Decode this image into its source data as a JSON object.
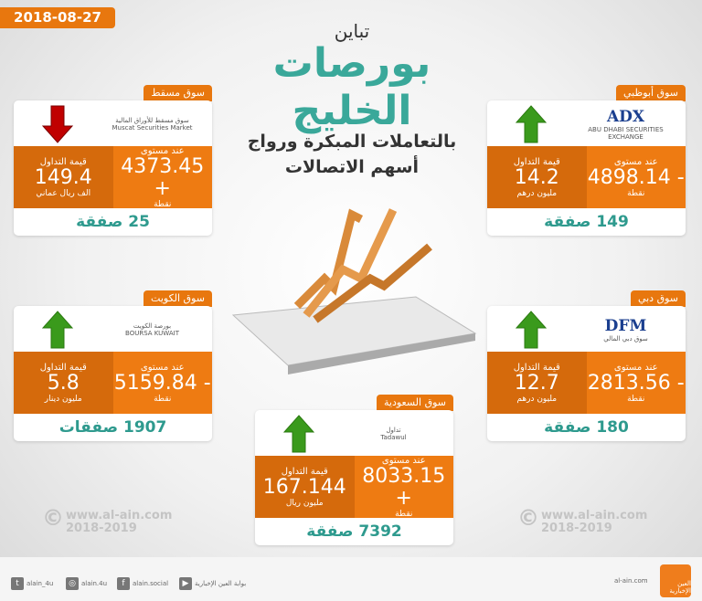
{
  "date": "2018-08-27",
  "headline": {
    "line1": "تباين",
    "line2": "بورصات",
    "line3": "الخليج",
    "line4": "بالتعاملات المبكرة ورواج",
    "line5": "أسهم الاتصالات"
  },
  "labels": {
    "level": "عند مستوى",
    "points": "نقطة",
    "trade_value": "قيمة التداول"
  },
  "colors": {
    "orange": "#e8770e",
    "dark_orange": "#d56a0c",
    "teal": "#2e9a8e",
    "up": "#3a9a1c",
    "down": "#c00000"
  },
  "markets": [
    {
      "name": "سوق مسقط",
      "logo_text": "سوق مسقط للأوراق المالية",
      "logo_en": "Muscat Securities Market",
      "logo_mark": "",
      "direction": "down",
      "change_sign": "+",
      "level": "4373.45",
      "trade_value": "149.4",
      "trade_unit": "الف ريال عماني",
      "deals": "25 صفقة"
    },
    {
      "name": "سوق أبوظبي",
      "logo_text": "ABU DHABI SECURITIES EXCHANGE",
      "logo_en": "",
      "logo_mark": "ADX",
      "direction": "up",
      "change_sign": "-",
      "level": "4898.14",
      "trade_value": "14.2",
      "trade_unit": "مليون درهم",
      "deals": "149 صفقة"
    },
    {
      "name": "سوق الكويت",
      "logo_text": "بورصة الكويت",
      "logo_en": "BOURSA KUWAIT",
      "logo_mark": "",
      "direction": "up",
      "change_sign": "-",
      "level": "5159.84",
      "trade_value": "5.8",
      "trade_unit": "مليون دينار",
      "deals": "1907 صفقات"
    },
    {
      "name": "سوق دبي",
      "logo_text": "سوق دبي المالي",
      "logo_en": "",
      "logo_mark": "DFM",
      "direction": "up",
      "change_sign": "-",
      "level": "2813.56",
      "trade_value": "12.7",
      "trade_unit": "مليون درهم",
      "deals": "180 صفقة"
    },
    {
      "name": "سوق السعودية",
      "logo_text": "تداول",
      "logo_en": "Tadawul",
      "logo_mark": "",
      "direction": "up",
      "change_sign": "+",
      "level": "8033.15",
      "trade_value": "167.144",
      "trade_unit": "مليون ريال",
      "deals": "7392 صفقة"
    }
  ],
  "watermark": {
    "url": "www.al-ain.com",
    "years": "2018-2019"
  },
  "footer": {
    "site": "al-ain.com",
    "youtube": "بوابة العين الإخبارية",
    "facebook": "alain.social",
    "instagram": "alain.4u",
    "twitter": "alain_4u",
    "logo_text": "العين الإخبارية"
  }
}
